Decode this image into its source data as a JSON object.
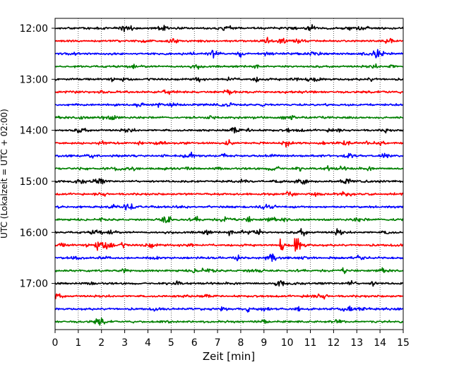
{
  "chart_data": {
    "type": "line",
    "subtype": "helicorder",
    "xlabel": "Zeit  [min]",
    "ylabel": "UTC (Lokalzeit = UTC + 02:00)",
    "xlim": [
      0,
      15
    ],
    "x_ticks": [
      "0",
      "1",
      "2",
      "3",
      "4",
      "5",
      "6",
      "7",
      "8",
      "9",
      "10",
      "11",
      "12",
      "13",
      "14",
      "15"
    ],
    "y_tick_labels": [
      "12:00",
      "13:00",
      "14:00",
      "15:00",
      "16:00",
      "17:00"
    ],
    "trace_start_times": [
      "12:00",
      "12:15",
      "12:30",
      "12:45",
      "13:00",
      "13:15",
      "13:30",
      "13:45",
      "14:00",
      "14:15",
      "14:30",
      "14:45",
      "15:00",
      "15:15",
      "15:30",
      "15:45",
      "16:00",
      "16:15",
      "16:30",
      "16:45",
      "17:00",
      "17:15",
      "17:30",
      "17:45"
    ],
    "trace_colors": [
      "#000000",
      "#ff0000",
      "#0000ff",
      "#008000"
    ],
    "vertical_grid": true,
    "grid_style": "dotted",
    "events": [
      {
        "trace": "16:15",
        "x_min": 10.35,
        "relative_amplitude": 1.0
      },
      {
        "trace": "16:15",
        "x_min": 9.7,
        "relative_amplitude": 0.45
      },
      {
        "trace": "16:30",
        "x_min": 13.0,
        "relative_amplitude": 0.35
      },
      {
        "trace": "16:15",
        "x_min": 1.75,
        "relative_amplitude": 0.4
      },
      {
        "trace": "12:00",
        "x_min": 7.25,
        "relative_amplitude": 0.35
      },
      {
        "trace": "16:00",
        "x_min": 7.5,
        "relative_amplitude": 0.25
      }
    ]
  }
}
